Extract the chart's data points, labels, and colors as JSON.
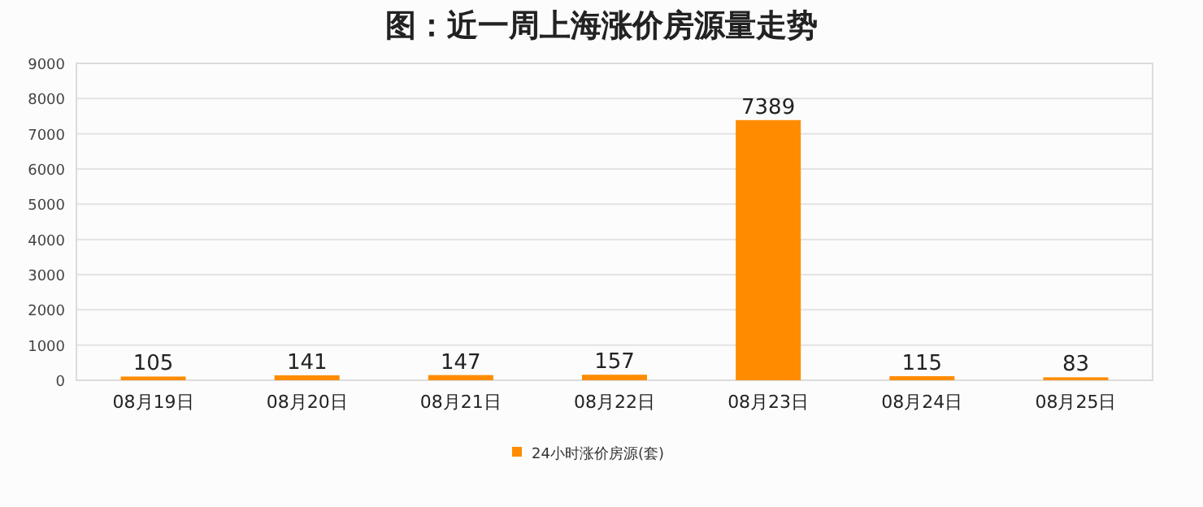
{
  "chart_data": {
    "type": "bar",
    "title": "图：近一周上海涨价房源量走势",
    "categories": [
      "08月19日",
      "08月20日",
      "08月21日",
      "08月22日",
      "08月23日",
      "08月24日",
      "08月25日"
    ],
    "series": [
      {
        "name": "24小时涨价房源(套)",
        "color": "#ff8c00",
        "values": [
          105,
          141,
          147,
          157,
          7389,
          115,
          83
        ]
      }
    ],
    "ylim": [
      0,
      9000
    ],
    "yticks": [
      0,
      1000,
      2000,
      3000,
      4000,
      5000,
      6000,
      7000,
      8000,
      9000
    ],
    "grid": "y",
    "legend": "bottom",
    "data_labels": true
  }
}
